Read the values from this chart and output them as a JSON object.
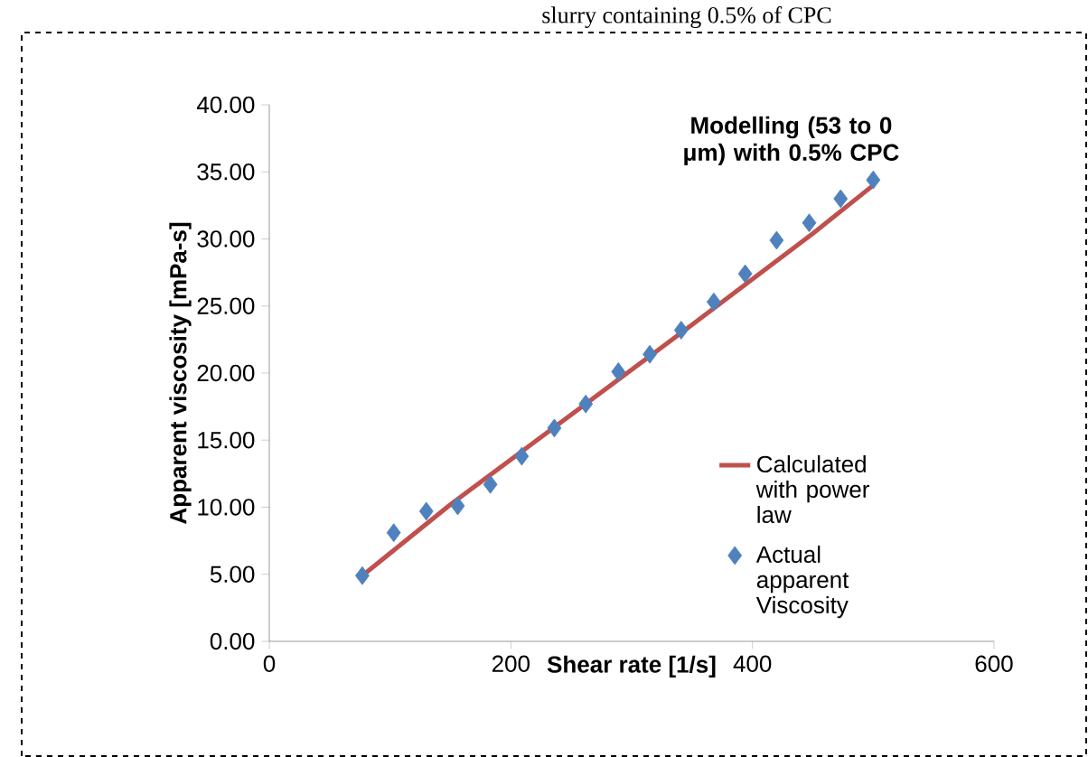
{
  "chart_data": {
    "type": "scatter",
    "title": "Modelling (53 to 0 μm) with 0.5% CPC",
    "xlabel": "Shear rate [1/s]",
    "ylabel": "Apparent viscosity [mPa-s]",
    "annotations": [
      "slurry containing 0.5% of CPC"
    ],
    "xlim": [
      0,
      600
    ],
    "xticks": [
      0,
      200,
      400,
      600
    ],
    "ylim": [
      0,
      40
    ],
    "yticks": [
      {
        "value": 0,
        "label": "0.00"
      },
      {
        "value": 5,
        "label": "5.00"
      },
      {
        "value": 10,
        "label": "10.00"
      },
      {
        "value": 15,
        "label": "15.00"
      },
      {
        "value": 20,
        "label": "20.00"
      },
      {
        "value": 25,
        "label": "25.00"
      },
      {
        "value": 30,
        "label": "30.00"
      },
      {
        "value": 35,
        "label": "35.00"
      },
      {
        "value": 40,
        "label": "40.00"
      }
    ],
    "legend": "right",
    "grid": false,
    "series": [
      {
        "name": "Calculated with power law",
        "type": "line",
        "color": "#c0504d",
        "marker": "none",
        "x": [
          77,
          150,
          250,
          350,
          450,
          500
        ],
        "values": [
          4.9,
          10.2,
          16.9,
          23.6,
          30.4,
          34.0
        ]
      },
      {
        "name": "Actual apparent Viscosity",
        "color": "#4f81bd",
        "marker": "diamond",
        "x": [
          77,
          103,
          130,
          156,
          183,
          209,
          236,
          262,
          289,
          315,
          341,
          368,
          394,
          420,
          447,
          473,
          500
        ],
        "values": [
          4.9,
          8.1,
          9.7,
          10.1,
          11.7,
          13.8,
          15.9,
          17.7,
          20.1,
          21.4,
          23.2,
          25.3,
          27.4,
          29.9,
          31.2,
          33.0,
          34.4
        ]
      }
    ]
  }
}
